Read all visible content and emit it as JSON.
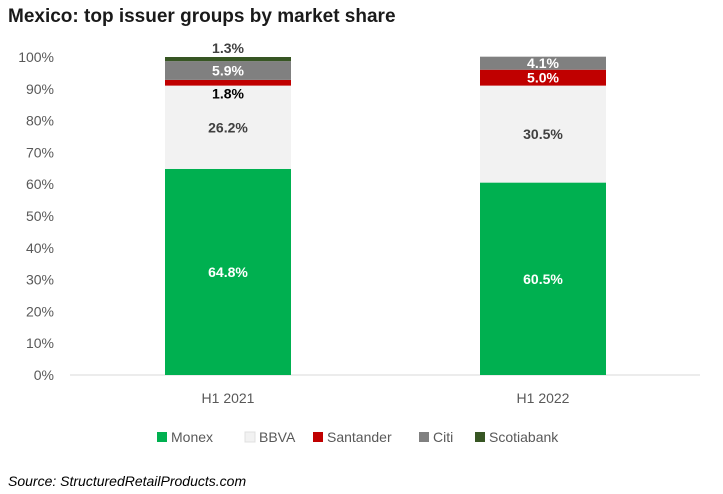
{
  "title": "Mexico: top issuer groups by market share",
  "source": "Source: StructuredRetailProducts.com",
  "chart_data": {
    "type": "bar",
    "stacked": true,
    "title": "Mexico: top issuer groups by market share",
    "categories": [
      "H1 2021",
      "H1 2022"
    ],
    "ylim": [
      0,
      100
    ],
    "yticks": [
      "0%",
      "10%",
      "20%",
      "30%",
      "40%",
      "50%",
      "60%",
      "70%",
      "80%",
      "90%",
      "100%"
    ],
    "legend_position": "bottom",
    "grid": false,
    "series": [
      {
        "name": "Monex",
        "values": [
          64.8,
          60.5
        ],
        "labels": [
          "64.8%",
          "60.5%"
        ],
        "color": "#00b050",
        "label_color": "#ffffff"
      },
      {
        "name": "BBVA",
        "values": [
          26.2,
          30.5
        ],
        "labels": [
          "26.2%",
          "30.5%"
        ],
        "color": "#f2f2f2",
        "label_color": "#404040"
      },
      {
        "name": "Santander",
        "values": [
          1.8,
          5.0
        ],
        "labels": [
          "1.8%",
          "5.0%"
        ],
        "color": "#c00000",
        "label_color": "#ffffff"
      },
      {
        "name": "Citi",
        "values": [
          5.9,
          4.1
        ],
        "labels": [
          "5.9%",
          "4.1%"
        ],
        "color": "#808080",
        "label_color": "#ffffff"
      },
      {
        "name": "Scotiabank",
        "values": [
          1.3,
          0
        ],
        "labels": [
          "1.3%",
          ""
        ],
        "color": "#375623",
        "label_color": "#404040"
      }
    ]
  }
}
